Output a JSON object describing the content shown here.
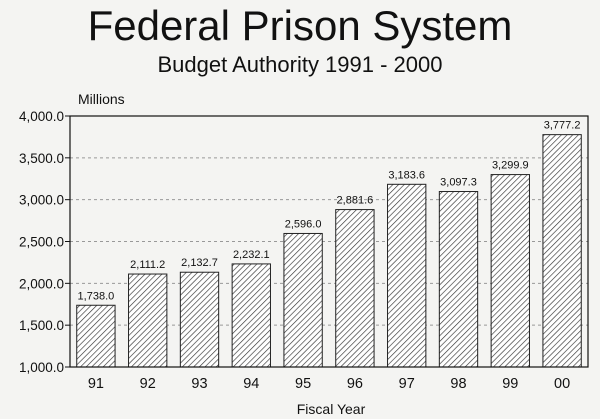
{
  "chart_data": {
    "type": "bar",
    "title": "Federal Prison System",
    "subtitle": "Budget Authority  1991 - 2000",
    "ylabel": "Millions",
    "xlabel": "Fiscal Year",
    "categories": [
      "91",
      "92",
      "93",
      "94",
      "95",
      "96",
      "97",
      "98",
      "99",
      "00"
    ],
    "values": [
      1738.0,
      2111.2,
      2132.7,
      2232.1,
      2596.0,
      2881.6,
      3183.6,
      3097.3,
      3299.9,
      3777.2
    ],
    "value_labels": [
      "1,738.0",
      "2,111.2",
      "2,132.7",
      "2,232.1",
      "2,596.0",
      "2,881.6",
      "3,183.6",
      "3,097.3",
      "3,299.9",
      "3,777.2"
    ],
    "ylim": [
      1000,
      4000
    ],
    "yticks": [
      1000,
      1500,
      2000,
      2500,
      3000,
      3500,
      4000
    ],
    "ytick_labels": [
      "1,000.0",
      "1,500.0",
      "2,000.0",
      "2,500.0",
      "3,000.0",
      "3,500.0",
      "4,000.0"
    ],
    "grid": true,
    "bar_pattern": "diagonal-hatch",
    "colors": {
      "bar_fill": "#ffffff",
      "hatch": "#333333",
      "axis": "#111111",
      "grid": "#999999"
    }
  }
}
